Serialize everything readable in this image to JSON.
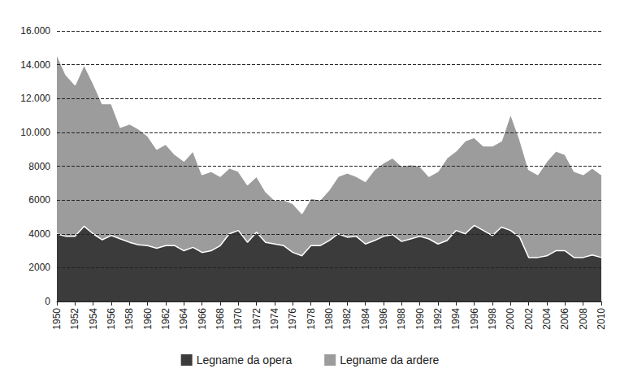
{
  "chart_data": {
    "type": "area",
    "stacked": true,
    "grid": true,
    "legend": "bottom",
    "categories": [
      "1950",
      null,
      "1952",
      null,
      "1954",
      null,
      "1956",
      null,
      "1958",
      null,
      "1960",
      null,
      "1962",
      null,
      "1964",
      null,
      "1966",
      null,
      "1968",
      null,
      "1970",
      null,
      "1972",
      null,
      "1974",
      null,
      "1976",
      null,
      "1978",
      null,
      "1980",
      null,
      "1982",
      null,
      "1984",
      null,
      "1986",
      null,
      "1988",
      null,
      "1990",
      null,
      "1992",
      null,
      "1994",
      null,
      "1996",
      null,
      "1998",
      null,
      "2000",
      null,
      "2002",
      null,
      "2004",
      null,
      "2006",
      null,
      "2008",
      null,
      "2010"
    ],
    "series": [
      {
        "name": "Legname da opera",
        "color": "#3b3b3b",
        "values": [
          4000,
          3850,
          3850,
          4450,
          4000,
          3650,
          3900,
          3700,
          3500,
          3350,
          3300,
          3150,
          3300,
          3300,
          3000,
          3200,
          2900,
          3000,
          3300,
          4000,
          4200,
          3500,
          4100,
          3500,
          3400,
          3300,
          2900,
          2700,
          3300,
          3300,
          3600,
          4000,
          3800,
          3850,
          3400,
          3600,
          3850,
          3950,
          3550,
          3700,
          3850,
          3700,
          3400,
          3600,
          4200,
          4000,
          4500,
          4200,
          3900,
          4400,
          4200,
          3800,
          2600,
          2600,
          2700,
          3000,
          3000,
          2600,
          2600,
          2750,
          2600
        ]
      },
      {
        "name": "Legname da ardere",
        "color": "#9c9c9c",
        "values": [
          10600,
          9550,
          8950,
          9550,
          8900,
          8050,
          7800,
          6600,
          7000,
          6850,
          6500,
          5850,
          6000,
          5400,
          5300,
          5700,
          4600,
          4700,
          4100,
          3900,
          3500,
          3400,
          3300,
          3000,
          2600,
          2700,
          2900,
          2500,
          2800,
          2700,
          3000,
          3400,
          3800,
          3550,
          3700,
          4200,
          4350,
          4550,
          4450,
          4400,
          4150,
          3700,
          4300,
          4900,
          4700,
          5500,
          5200,
          5000,
          5300,
          5100,
          6900,
          5800,
          5200,
          4900,
          5600,
          5900,
          5700,
          5100,
          4900,
          5150,
          4900
        ]
      }
    ],
    "ylim": [
      0,
      16000
    ],
    "yticks": [
      0,
      2000,
      4000,
      6000,
      8000,
      {
        "value": 10000,
        "label": "10.000"
      },
      {
        "value": 12000,
        "label": "12.000"
      },
      {
        "value": 14000,
        "label": "14.000"
      },
      {
        "value": 16000,
        "label": "16.000"
      }
    ]
  }
}
